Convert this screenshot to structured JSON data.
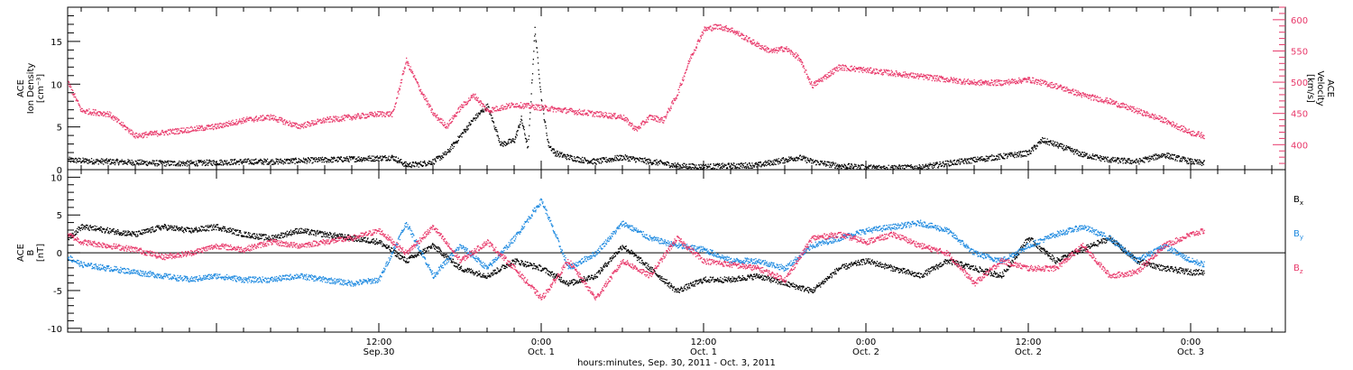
{
  "colors": {
    "black": "#000000",
    "pink": "#e8386a",
    "blue": "#1f8ae0"
  },
  "chart_data": [
    {
      "type": "scatter",
      "panel": "density-velocity",
      "ylabel": [
        "ACE",
        "Ion Density",
        "[cm⁻³]"
      ],
      "y2label": [
        "ACE",
        "Velocity",
        "[km/s]"
      ],
      "ylim": [
        0,
        19
      ],
      "y2lim": [
        360,
        620
      ],
      "yticks": [
        0,
        5,
        10,
        15
      ],
      "y2ticks": [
        400,
        450,
        500,
        550,
        600
      ],
      "x_start": "2011-09-29 13:00",
      "x_end": "2011-10-03 07:00",
      "series": [
        {
          "color_key": "black",
          "axis": "left",
          "x": [
            "2011-09-29 13:00",
            "2011-09-29 14:00",
            "2011-09-29 16:00",
            "2011-09-29 18:00",
            "2011-09-29 20:00",
            "2011-09-29 22:00",
            "2011-09-30 00:00",
            "2011-09-30 02:00",
            "2011-09-30 04:00",
            "2011-09-30 06:00",
            "2011-09-30 08:00",
            "2011-09-30 10:00",
            "2011-09-30 12:00",
            "2011-09-30 13:00",
            "2011-09-30 14:00",
            "2011-09-30 15:00",
            "2011-09-30 16:00",
            "2011-09-30 17:00",
            "2011-09-30 18:00",
            "2011-09-30 19:00",
            "2011-09-30 20:00",
            "2011-09-30 21:00",
            "2011-09-30 22:00",
            "2011-09-30 22:30",
            "2011-09-30 23:00",
            "2011-09-30 23:30",
            "2011-10-01 00:00",
            "2011-10-01 00:30",
            "2011-10-01 01:00",
            "2011-10-01 02:00",
            "2011-10-01 03:00",
            "2011-10-01 04:00",
            "2011-10-01 06:00",
            "2011-10-01 08:00",
            "2011-10-01 09:00",
            "2011-10-01 10:00",
            "2011-10-01 12:00",
            "2011-10-01 14:00",
            "2011-10-01 16:00",
            "2011-10-01 18:00",
            "2011-10-01 19:00",
            "2011-10-01 20:00",
            "2011-10-01 22:00",
            "2011-10-02 00:00",
            "2011-10-02 02:00",
            "2011-10-02 04:00",
            "2011-10-02 06:00",
            "2011-10-02 08:00",
            "2011-10-02 10:00",
            "2011-10-02 12:00",
            "2011-10-02 13:00",
            "2011-10-02 14:00",
            "2011-10-02 16:00",
            "2011-10-02 18:00",
            "2011-10-02 20:00",
            "2011-10-02 22:00",
            "2011-10-03 00:00",
            "2011-10-03 01:00"
          ],
          "y": [
            1.2,
            1.1,
            1.0,
            0.9,
            0.8,
            0.8,
            0.9,
            1.0,
            1.0,
            1.1,
            1.2,
            1.3,
            1.4,
            1.5,
            0.6,
            0.7,
            1.0,
            2.0,
            4.0,
            6.0,
            7.5,
            3.0,
            3.5,
            6.0,
            2.5,
            16.5,
            8.0,
            3.0,
            2.0,
            1.5,
            1.2,
            1.0,
            1.5,
            1.0,
            0.8,
            0.5,
            0.4,
            0.5,
            0.6,
            1.2,
            1.5,
            1.0,
            0.5,
            0.3,
            0.3,
            0.3,
            0.8,
            1.2,
            1.6,
            2.0,
            3.5,
            3.0,
            1.8,
            1.2,
            1.0,
            1.8,
            1.0,
            0.8
          ]
        },
        {
          "color_key": "pink",
          "axis": "right",
          "x": [
            "2011-09-29 13:00",
            "2011-09-29 14:00",
            "2011-09-29 16:00",
            "2011-09-29 18:00",
            "2011-09-29 20:00",
            "2011-09-29 22:00",
            "2011-09-30 00:00",
            "2011-09-30 02:00",
            "2011-09-30 04:00",
            "2011-09-30 06:00",
            "2011-09-30 08:00",
            "2011-09-30 10:00",
            "2011-09-30 12:00",
            "2011-09-30 13:00",
            "2011-09-30 14:00",
            "2011-09-30 15:00",
            "2011-09-30 16:00",
            "2011-09-30 17:00",
            "2011-09-30 18:00",
            "2011-09-30 19:00",
            "2011-09-30 20:00",
            "2011-09-30 22:00",
            "2011-10-01 00:00",
            "2011-10-01 02:00",
            "2011-10-01 04:00",
            "2011-10-01 06:00",
            "2011-10-01 07:00",
            "2011-10-01 08:00",
            "2011-10-01 09:00",
            "2011-10-01 10:00",
            "2011-10-01 11:00",
            "2011-10-01 12:00",
            "2011-10-01 13:00",
            "2011-10-01 14:00",
            "2011-10-01 16:00",
            "2011-10-01 17:00",
            "2011-10-01 18:00",
            "2011-10-01 19:00",
            "2011-10-01 20:00",
            "2011-10-01 22:00",
            "2011-10-02 00:00",
            "2011-10-02 02:00",
            "2011-10-02 04:00",
            "2011-10-02 06:00",
            "2011-10-02 08:00",
            "2011-10-02 10:00",
            "2011-10-02 12:00",
            "2011-10-02 14:00",
            "2011-10-02 16:00",
            "2011-10-02 18:00",
            "2011-10-02 20:00",
            "2011-10-02 22:00",
            "2011-10-03 00:00",
            "2011-10-03 01:00"
          ],
          "y": [
            500,
            455,
            450,
            415,
            420,
            425,
            430,
            440,
            445,
            430,
            440,
            445,
            450,
            450,
            535,
            490,
            450,
            430,
            460,
            480,
            455,
            465,
            460,
            455,
            450,
            445,
            425,
            445,
            440,
            480,
            540,
            585,
            590,
            585,
            560,
            550,
            555,
            540,
            495,
            525,
            520,
            515,
            510,
            505,
            500,
            500,
            505,
            495,
            480,
            470,
            455,
            440,
            420,
            415
          ]
        }
      ]
    },
    {
      "type": "scatter",
      "panel": "magnetic-field",
      "ylabel": [
        "ACE",
        "B",
        "[nT]"
      ],
      "ylim": [
        -10.5,
        11
      ],
      "yticks": [
        -10,
        -5,
        0,
        5,
        10
      ],
      "x_start": "2011-09-29 13:00",
      "x_end": "2011-10-03 07:00",
      "legend": [
        "Bx",
        "By",
        "Bz"
      ],
      "legend_placement": "right",
      "series": [
        {
          "name": "Bx",
          "color_key": "black",
          "x": [
            "2011-09-29 13:00",
            "2011-09-29 14:00",
            "2011-09-29 16:00",
            "2011-09-29 18:00",
            "2011-09-29 20:00",
            "2011-09-29 22:00",
            "2011-09-30 00:00",
            "2011-09-30 02:00",
            "2011-09-30 04:00",
            "2011-09-30 06:00",
            "2011-09-30 08:00",
            "2011-09-30 10:00",
            "2011-09-30 12:00",
            "2011-09-30 14:00",
            "2011-09-30 16:00",
            "2011-09-30 18:00",
            "2011-09-30 20:00",
            "2011-09-30 22:00",
            "2011-10-01 00:00",
            "2011-10-01 02:00",
            "2011-10-01 04:00",
            "2011-10-01 06:00",
            "2011-10-01 08:00",
            "2011-10-01 10:00",
            "2011-10-01 12:00",
            "2011-10-01 14:00",
            "2011-10-01 16:00",
            "2011-10-01 18:00",
            "2011-10-01 20:00",
            "2011-10-01 22:00",
            "2011-10-02 00:00",
            "2011-10-02 02:00",
            "2011-10-02 04:00",
            "2011-10-02 06:00",
            "2011-10-02 08:00",
            "2011-10-02 10:00",
            "2011-10-02 12:00",
            "2011-10-02 14:00",
            "2011-10-02 16:00",
            "2011-10-02 18:00",
            "2011-10-02 20:00",
            "2011-10-02 22:00",
            "2011-10-03 00:00",
            "2011-10-03 01:00"
          ],
          "y": [
            2.0,
            3.5,
            3.0,
            2.5,
            3.5,
            3.0,
            3.5,
            2.5,
            2.0,
            3.0,
            2.5,
            2.0,
            1.5,
            -1.0,
            1.0,
            -2.0,
            -3.0,
            -1.0,
            -2.0,
            -4.0,
            -3.0,
            1.0,
            -2.0,
            -5.0,
            -3.5,
            -3.5,
            -3.0,
            -4.0,
            -5.0,
            -2.0,
            -1.0,
            -2.0,
            -3.0,
            -1.0,
            -2.0,
            -3.0,
            2.0,
            -1.0,
            0.5,
            2.0,
            -1.0,
            -2.0,
            -2.5,
            -2.5
          ]
        },
        {
          "name": "By",
          "color_key": "blue",
          "x": [
            "2011-09-29 13:00",
            "2011-09-29 14:00",
            "2011-09-29 16:00",
            "2011-09-29 18:00",
            "2011-09-29 20:00",
            "2011-09-29 22:00",
            "2011-09-30 00:00",
            "2011-09-30 02:00",
            "2011-09-30 04:00",
            "2011-09-30 06:00",
            "2011-09-30 08:00",
            "2011-09-30 10:00",
            "2011-09-30 12:00",
            "2011-09-30 14:00",
            "2011-09-30 16:00",
            "2011-09-30 18:00",
            "2011-09-30 20:00",
            "2011-09-30 22:00",
            "2011-10-01 00:00",
            "2011-10-01 02:00",
            "2011-10-01 04:00",
            "2011-10-01 06:00",
            "2011-10-01 08:00",
            "2011-10-01 10:00",
            "2011-10-01 12:00",
            "2011-10-01 14:00",
            "2011-10-01 16:00",
            "2011-10-01 18:00",
            "2011-10-01 20:00",
            "2011-10-01 22:00",
            "2011-10-02 00:00",
            "2011-10-02 02:00",
            "2011-10-02 04:00",
            "2011-10-02 06:00",
            "2011-10-02 08:00",
            "2011-10-02 10:00",
            "2011-10-02 12:00",
            "2011-10-02 14:00",
            "2011-10-02 16:00",
            "2011-10-02 18:00",
            "2011-10-02 20:00",
            "2011-10-02 22:00",
            "2011-10-03 00:00",
            "2011-10-03 01:00"
          ],
          "y": [
            -0.5,
            -1.5,
            -2.0,
            -2.5,
            -3.0,
            -3.5,
            -3.0,
            -3.5,
            -3.5,
            -3.0,
            -3.5,
            -4.0,
            -3.5,
            4.0,
            -3.0,
            1.0,
            -2.0,
            2.0,
            7.0,
            -2.0,
            0.0,
            4.0,
            2.0,
            1.0,
            0.5,
            -1.0,
            -1.0,
            -2.0,
            1.0,
            2.0,
            3.0,
            3.5,
            4.0,
            3.0,
            0.0,
            -1.0,
            1.0,
            2.5,
            3.5,
            2.0,
            -1.0,
            1.0,
            -1.0,
            -1.5
          ]
        },
        {
          "name": "Bz",
          "color_key": "pink",
          "x": [
            "2011-09-29 13:00",
            "2011-09-29 14:00",
            "2011-09-29 16:00",
            "2011-09-29 18:00",
            "2011-09-29 20:00",
            "2011-09-29 22:00",
            "2011-09-30 00:00",
            "2011-09-30 02:00",
            "2011-09-30 04:00",
            "2011-09-30 06:00",
            "2011-09-30 08:00",
            "2011-09-30 10:00",
            "2011-09-30 12:00",
            "2011-09-30 14:00",
            "2011-09-30 16:00",
            "2011-09-30 18:00",
            "2011-09-30 20:00",
            "2011-09-30 22:00",
            "2011-10-01 00:00",
            "2011-10-01 02:00",
            "2011-10-01 04:00",
            "2011-10-01 06:00",
            "2011-10-01 08:00",
            "2011-10-01 10:00",
            "2011-10-01 12:00",
            "2011-10-01 14:00",
            "2011-10-01 16:00",
            "2011-10-01 18:00",
            "2011-10-01 20:00",
            "2011-10-01 22:00",
            "2011-10-02 00:00",
            "2011-10-02 02:00",
            "2011-10-02 04:00",
            "2011-10-02 06:00",
            "2011-10-02 08:00",
            "2011-10-02 10:00",
            "2011-10-02 12:00",
            "2011-10-02 14:00",
            "2011-10-02 16:00",
            "2011-10-02 18:00",
            "2011-10-02 20:00",
            "2011-10-02 22:00",
            "2011-10-03 00:00",
            "2011-10-03 01:00"
          ],
          "y": [
            2.5,
            1.5,
            1.0,
            0.5,
            -0.5,
            0.0,
            1.0,
            0.5,
            1.5,
            1.0,
            1.5,
            2.0,
            3.0,
            0.0,
            3.5,
            -1.0,
            1.5,
            -2.0,
            -6.0,
            -1.0,
            -6.0,
            -1.0,
            -3.0,
            2.0,
            -1.0,
            -1.5,
            -2.0,
            -3.5,
            2.0,
            2.5,
            1.5,
            2.5,
            1.0,
            0.0,
            -4.0,
            -1.0,
            -2.0,
            -2.0,
            1.0,
            -3.0,
            -2.5,
            1.0,
            2.5,
            3.0
          ]
        }
      ]
    }
  ],
  "legend": {
    "bx": {
      "base": "B",
      "sub": "x",
      "color_key": "black"
    },
    "by": {
      "base": "B",
      "sub": "y",
      "color_key": "blue"
    },
    "bz": {
      "base": "B",
      "sub": "z",
      "color_key": "pink"
    }
  },
  "xaxis": {
    "ticks": [
      {
        "time": "2011-09-30 12:00",
        "line1": "12:00",
        "line2": "Sep.30"
      },
      {
        "time": "2011-10-01 00:00",
        "line1": "0:00",
        "line2": "Oct. 1"
      },
      {
        "time": "2011-10-01 12:00",
        "line1": "12:00",
        "line2": "Oct. 1"
      },
      {
        "time": "2011-10-02 00:00",
        "line1": "0:00",
        "line2": "Oct. 2"
      },
      {
        "time": "2011-10-02 12:00",
        "line1": "12:00",
        "line2": "Oct. 2"
      },
      {
        "time": "2011-10-03 00:00",
        "line1": "0:00",
        "line2": "Oct. 3"
      }
    ],
    "title": "hours:minutes, Sep. 30, 2011 - Oct.  3, 2011"
  }
}
